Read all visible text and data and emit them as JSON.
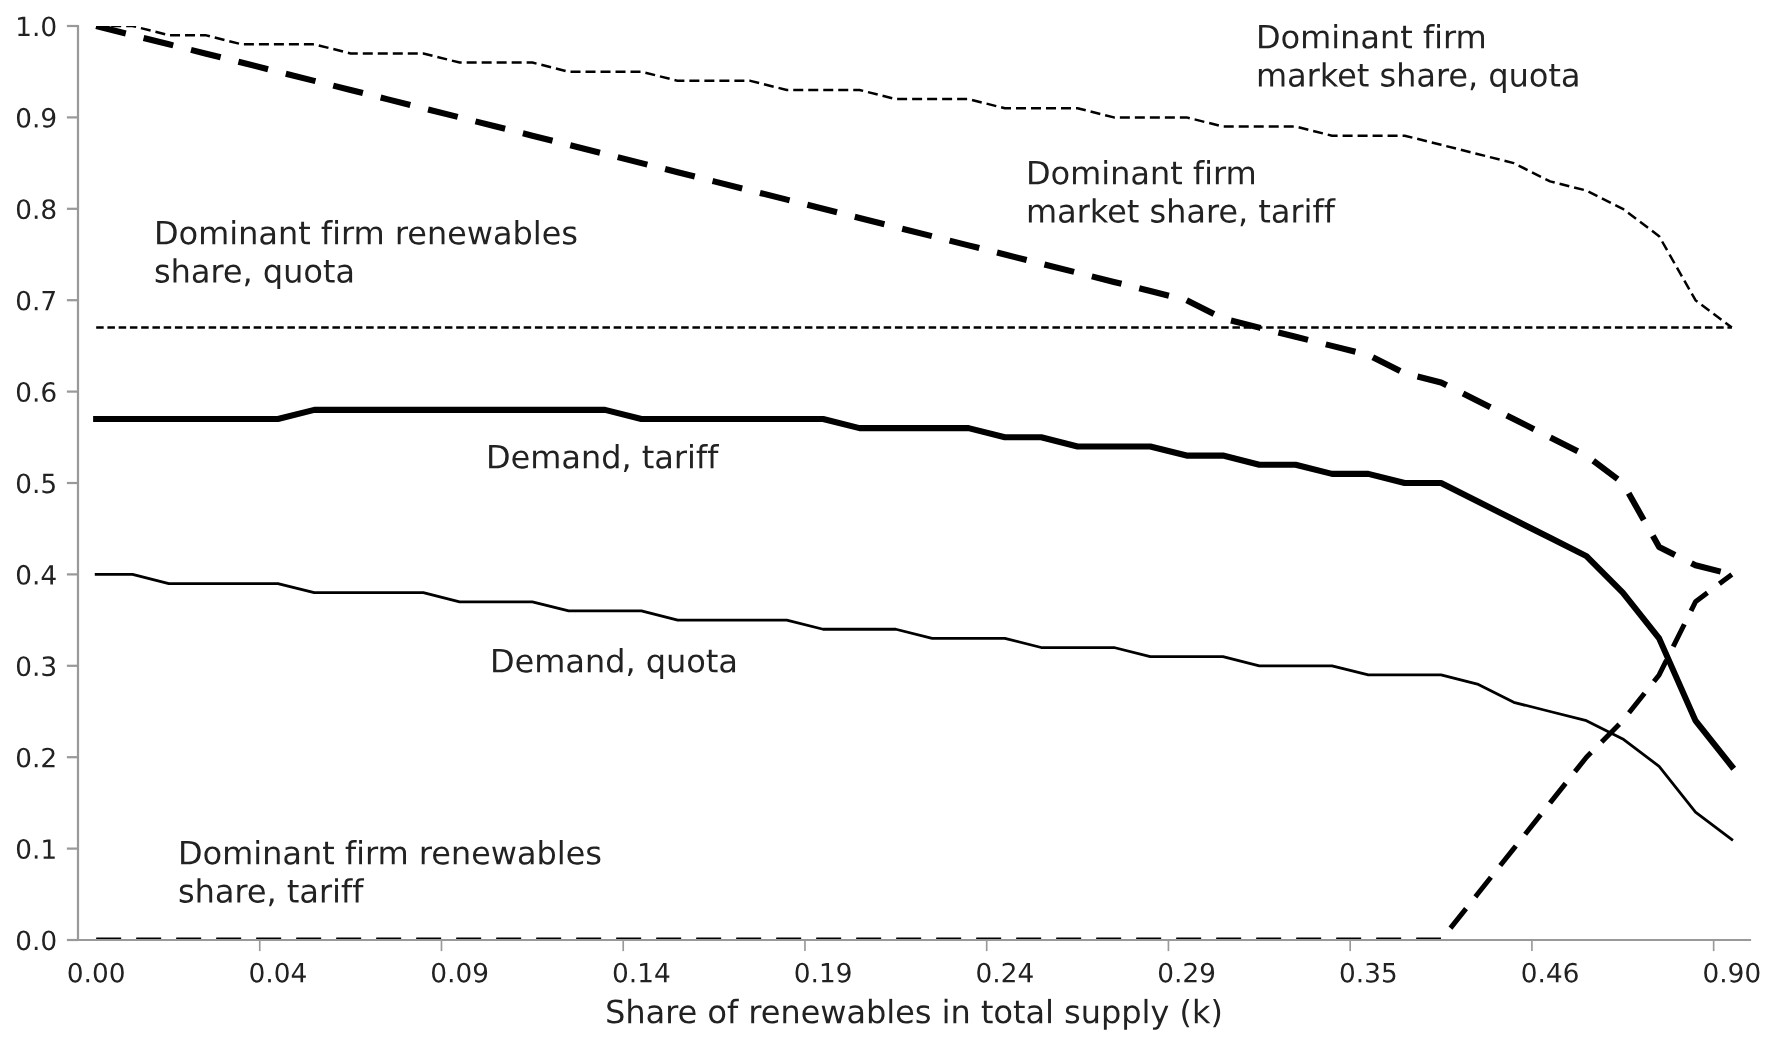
{
  "chart_data": {
    "type": "line",
    "xlabel": "Share of renewables in total supply (k)",
    "categories": [
      "0.00",
      null,
      null,
      null,
      null,
      "0.04",
      null,
      null,
      null,
      null,
      "0.09",
      null,
      null,
      null,
      null,
      "0.14",
      null,
      null,
      null,
      null,
      "0.19",
      null,
      null,
      null,
      null,
      "0.24",
      null,
      null,
      null,
      null,
      "0.29",
      null,
      null,
      null,
      null,
      "0.35",
      null,
      null,
      null,
      null,
      "0.46",
      null,
      null,
      null,
      null,
      "0.90"
    ],
    "ylim": [
      0,
      1
    ],
    "yticks": [
      {
        "value": 0,
        "label": "0.0"
      },
      0.1,
      0.2,
      0.3,
      0.4,
      0.5,
      0.6,
      0.7,
      0.8,
      0.9,
      {
        "value": 1,
        "label": "1.0"
      }
    ],
    "grid": false,
    "legend": false,
    "marker": "none",
    "series": [
      {
        "name": "Dominant firm\nmarket share, quota",
        "color": "#000000",
        "line_style": "dashed",
        "values": [
          1.0,
          1.0,
          0.99,
          0.99,
          0.98,
          0.98,
          0.98,
          0.97,
          0.97,
          0.97,
          0.96,
          0.96,
          0.96,
          0.95,
          0.95,
          0.95,
          0.94,
          0.94,
          0.94,
          0.93,
          0.93,
          0.93,
          0.92,
          0.92,
          0.92,
          0.91,
          0.91,
          0.91,
          0.9,
          0.9,
          0.9,
          0.89,
          0.89,
          0.89,
          0.88,
          0.88,
          0.88,
          0.87,
          0.86,
          0.85,
          0.83,
          0.82,
          0.8,
          0.77,
          0.7,
          0.67
        ]
      },
      {
        "name": "Dominant firm\nmarket share, tariff",
        "color": "#000000",
        "line_style": "dashed",
        "values": [
          1.0,
          0.99,
          0.98,
          0.97,
          0.96,
          0.95,
          0.94,
          0.93,
          0.92,
          0.91,
          0.9,
          0.89,
          0.88,
          0.87,
          0.86,
          0.85,
          0.84,
          0.83,
          0.82,
          0.81,
          0.8,
          0.79,
          0.78,
          0.77,
          0.76,
          0.75,
          0.74,
          0.73,
          0.72,
          0.71,
          0.7,
          0.68,
          0.67,
          0.66,
          0.65,
          0.64,
          0.62,
          0.61,
          0.59,
          0.57,
          0.55,
          0.53,
          0.5,
          0.43,
          0.41,
          0.4
        ]
      },
      {
        "name": "Dominant firm renewables\nshare, quota",
        "color": "#000000",
        "line_style": "dotted",
        "values": [
          0.67,
          0.67,
          0.67,
          0.67,
          0.67,
          0.67,
          0.67,
          0.67,
          0.67,
          0.67,
          0.67,
          0.67,
          0.67,
          0.67,
          0.67,
          0.67,
          0.67,
          0.67,
          0.67,
          0.67,
          0.67,
          0.67,
          0.67,
          0.67,
          0.67,
          0.67,
          0.67,
          0.67,
          0.67,
          0.67,
          0.67,
          0.67,
          0.67,
          0.67,
          0.67,
          0.67,
          0.67,
          0.67,
          0.67,
          0.67,
          0.67,
          0.67,
          0.67,
          0.67,
          0.67,
          0.67
        ]
      },
      {
        "name": "Demand, tariff",
        "color": "#000000",
        "line_style": "solid",
        "values": [
          0.57,
          0.57,
          0.57,
          0.57,
          0.57,
          0.57,
          0.58,
          0.58,
          0.58,
          0.58,
          0.58,
          0.58,
          0.58,
          0.58,
          0.58,
          0.57,
          0.57,
          0.57,
          0.57,
          0.57,
          0.57,
          0.56,
          0.56,
          0.56,
          0.56,
          0.55,
          0.55,
          0.54,
          0.54,
          0.54,
          0.53,
          0.53,
          0.52,
          0.52,
          0.51,
          0.51,
          0.5,
          0.5,
          0.48,
          0.46,
          0.44,
          0.42,
          0.38,
          0.33,
          0.24,
          0.19
        ]
      },
      {
        "name": "Demand, quota",
        "color": "#000000",
        "line_style": "solid",
        "values": [
          0.4,
          0.4,
          0.39,
          0.39,
          0.39,
          0.39,
          0.38,
          0.38,
          0.38,
          0.38,
          0.37,
          0.37,
          0.37,
          0.36,
          0.36,
          0.36,
          0.35,
          0.35,
          0.35,
          0.35,
          0.34,
          0.34,
          0.34,
          0.33,
          0.33,
          0.33,
          0.32,
          0.32,
          0.32,
          0.31,
          0.31,
          0.31,
          0.3,
          0.3,
          0.3,
          0.29,
          0.29,
          0.29,
          0.28,
          0.26,
          0.25,
          0.24,
          0.22,
          0.19,
          0.14,
          0.11
        ]
      },
      {
        "name": "Dominant firm renewables\nshare, tariff",
        "color": "#000000",
        "line_style": "dashed",
        "values": [
          0,
          0,
          0,
          0,
          0,
          0,
          0,
          0,
          0,
          0,
          0,
          0,
          0,
          0,
          0,
          0,
          0,
          0,
          0,
          0,
          0,
          0,
          0,
          0,
          0,
          0,
          0,
          0,
          0,
          0,
          0,
          0,
          0,
          0,
          0,
          0,
          0,
          0,
          0.05,
          0.1,
          0.15,
          0.2,
          0.24,
          0.29,
          0.37,
          0.4
        ]
      }
    ]
  }
}
